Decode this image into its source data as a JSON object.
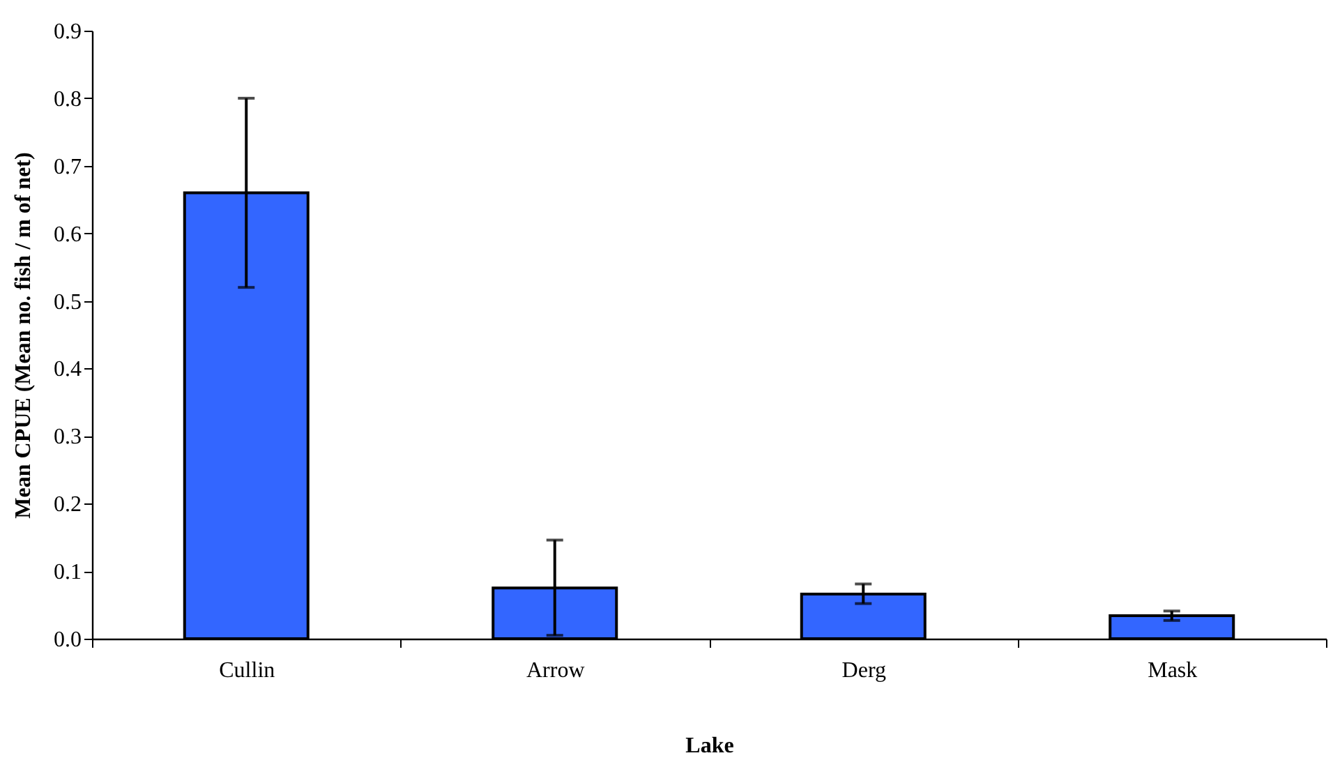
{
  "chart_data": {
    "type": "bar",
    "xlabel": "Lake",
    "ylabel": "Mean CPUE (Mean no. fish / m of net)",
    "categories": [
      "Cullin",
      "Arrow",
      "Derg",
      "Mask"
    ],
    "values": [
      0.66,
      0.075,
      0.066,
      0.034
    ],
    "errors": [
      [
        0.52,
        0.8
      ],
      [
        0.005,
        0.146
      ],
      [
        0.052,
        0.081
      ],
      [
        0.027,
        0.041
      ]
    ],
    "color": "#3366ff",
    "ylim": [
      0,
      0.9
    ],
    "yticks": [
      {
        "value": 0,
        "label": "0.0"
      },
      0.1,
      0.2,
      0.3,
      0.4,
      0.5,
      0.6,
      0.7,
      0.8,
      0.9
    ],
    "grid": false
  }
}
